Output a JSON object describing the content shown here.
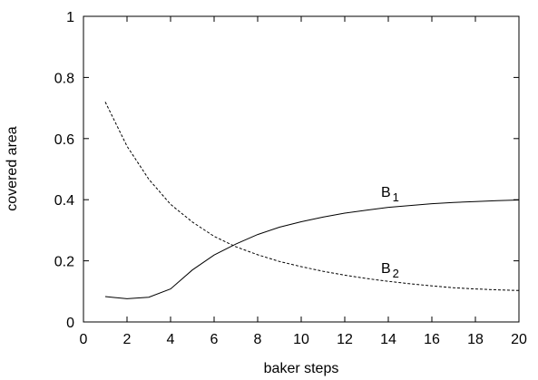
{
  "chart_data": {
    "type": "line",
    "title": "",
    "xlabel": "baker steps",
    "ylabel": "covered area",
    "xlim": [
      0,
      20
    ],
    "ylim": [
      0,
      1
    ],
    "xticks": [
      "0",
      "2",
      "4",
      "6",
      "8",
      "10",
      "12",
      "14",
      "16",
      "18",
      "20"
    ],
    "yticks": [
      "0",
      "0.2",
      "0.4",
      "0.6",
      "0.8",
      "1"
    ],
    "grid": false,
    "legend": "none",
    "series": [
      {
        "name": "B",
        "subscript": "1",
        "style": "solid",
        "label_at": [
          14,
          0.41
        ],
        "x": [
          1,
          2,
          3,
          4,
          5,
          6,
          7,
          8,
          9,
          10,
          11,
          12,
          13,
          14,
          15,
          16,
          17,
          18,
          19,
          20
        ],
        "y": [
          0.083,
          0.076,
          0.081,
          0.108,
          0.17,
          0.219,
          0.255,
          0.286,
          0.31,
          0.328,
          0.343,
          0.356,
          0.366,
          0.375,
          0.381,
          0.387,
          0.391,
          0.394,
          0.397,
          0.399
        ]
      },
      {
        "name": "B",
        "subscript": "2",
        "style": "dashed",
        "label_at": [
          14,
          0.16
        ],
        "x": [
          1,
          2,
          3,
          4,
          5,
          6,
          7,
          8,
          9,
          10,
          11,
          12,
          13,
          14,
          15,
          16,
          17,
          18,
          19,
          20
        ],
        "y": [
          0.72,
          0.575,
          0.467,
          0.385,
          0.327,
          0.28,
          0.246,
          0.22,
          0.198,
          0.181,
          0.166,
          0.153,
          0.142,
          0.133,
          0.125,
          0.118,
          0.112,
          0.108,
          0.105,
          0.103
        ]
      }
    ]
  }
}
